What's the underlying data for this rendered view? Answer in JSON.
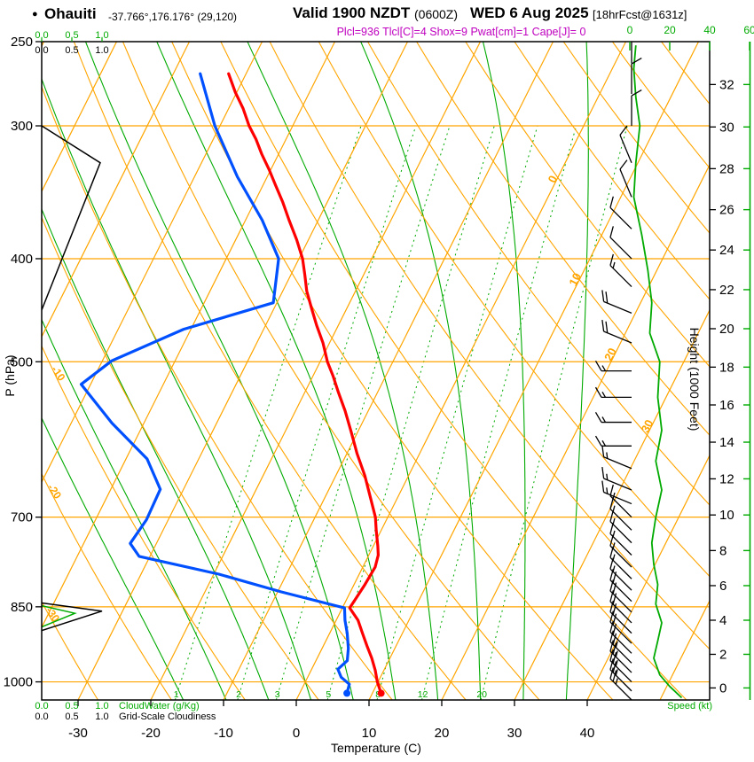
{
  "header": {
    "bullet": "●",
    "station": "Ohauiti",
    "coords": "-37.766°,176.176° (29,120)",
    "valid_prefix": "Valid 1900 NZDT",
    "valid_zulu": "(0600Z)",
    "valid_date": "WED 6 Aug 2025",
    "fcst_tag": "[18hrFcst@1631z]",
    "params": "Plcl=936 Tlcl[C]=4 Shox=9 Pwat[cm]=1 Cape[J]= 0"
  },
  "axes": {
    "pressure_label": "P (hPa)",
    "temperature_label": "Temperature (C)",
    "height_label": "Height (1000 Feet)",
    "speed_label": "Speed (kt)",
    "cloudwater_label": "CloudWater (g/Kg)",
    "cloudiness_label": "Grid-Scale Cloudiness",
    "pressure_ticks": [
      250,
      300,
      400,
      500,
      700,
      850,
      1000
    ],
    "temperature_ticks": [
      -30,
      -20,
      -10,
      0,
      10,
      20,
      30,
      40
    ],
    "height_ticks": [
      0,
      2,
      4,
      6,
      8,
      10,
      12,
      14,
      16,
      18,
      20,
      22,
      24,
      26,
      28,
      30,
      32
    ],
    "speed_scale_ticks": [
      "0",
      "20",
      "40",
      "60"
    ],
    "cloud_scale_ticks": [
      "0.0",
      "0.5",
      "1.0"
    ]
  },
  "chart_data": {
    "type": "line",
    "subtype": "skew-t log-p sounding",
    "pressure_range_hPa": [
      250,
      1040
    ],
    "isotherm_lines_C": {
      "start": -80,
      "end": 50,
      "step": 10
    },
    "isotherm_labels": [
      {
        "t": 0,
        "p": 338
      },
      {
        "t": 10,
        "p": 420
      },
      {
        "t": 20,
        "p": 494
      },
      {
        "t": 30,
        "p": 577
      }
    ],
    "dry_adiabat_lines_C": {
      "start": -90,
      "end": 150,
      "step": 10
    },
    "dry_adiabat_labels": [
      {
        "theta": -10,
        "p": 515
      },
      {
        "theta": -20,
        "p": 665
      },
      {
        "theta": -30,
        "p": 868
      }
    ],
    "moist_adiabat_lines_C": {
      "start": -18,
      "end": 36,
      "step": 6
    },
    "mixing_ratio_lines_gkg": [
      1,
      2,
      3,
      5,
      8,
      12,
      20
    ],
    "pressure_gridlines_hPa": [
      300,
      400,
      500,
      700,
      850,
      1000
    ],
    "temperature_profile": {
      "color": "#ff0000",
      "points_p_t": [
        [
          1025,
          11.2
        ],
        [
          1000,
          9.9
        ],
        [
          975,
          8.8
        ],
        [
          950,
          7.5
        ],
        [
          925,
          6.0
        ],
        [
          900,
          4.5
        ],
        [
          875,
          3.0
        ],
        [
          852,
          1.0
        ],
        [
          835,
          1.2
        ],
        [
          810,
          1.5
        ],
        [
          780,
          1.7
        ],
        [
          760,
          1.3
        ],
        [
          745,
          0.6
        ],
        [
          720,
          -0.7
        ],
        [
          700,
          -1.7
        ],
        [
          670,
          -3.8
        ],
        [
          640,
          -6.0
        ],
        [
          610,
          -8.6
        ],
        [
          582,
          -10.9
        ],
        [
          556,
          -13.2
        ],
        [
          534,
          -15.4
        ],
        [
          516,
          -17.2
        ],
        [
          500,
          -19.0
        ],
        [
          480,
          -20.9
        ],
        [
          462,
          -23.0
        ],
        [
          445,
          -24.9
        ],
        [
          429,
          -26.7
        ],
        [
          414,
          -28.1
        ],
        [
          400,
          -29.5
        ],
        [
          384,
          -31.6
        ],
        [
          368,
          -34.0
        ],
        [
          354,
          -36.1
        ],
        [
          341,
          -38.3
        ],
        [
          330,
          -40.2
        ],
        [
          319,
          -42.3
        ],
        [
          309,
          -44.1
        ],
        [
          300,
          -46.0
        ],
        [
          289,
          -48.0
        ],
        [
          279,
          -50.2
        ],
        [
          268,
          -52.4
        ]
      ]
    },
    "dewpoint_profile": {
      "color": "#0050ff",
      "points_p_t": [
        [
          1025,
          6.5
        ],
        [
          1005,
          6.2
        ],
        [
          990,
          4.6
        ],
        [
          973,
          3.6
        ],
        [
          955,
          4.3
        ],
        [
          930,
          3.6
        ],
        [
          900,
          2.4
        ],
        [
          875,
          1.2
        ],
        [
          852,
          0.3
        ],
        [
          823,
          -9.5
        ],
        [
          792,
          -19.3
        ],
        [
          762,
          -31.5
        ],
        [
          741,
          -33.6
        ],
        [
          704,
          -33.0
        ],
        [
          659,
          -33.2
        ],
        [
          617,
          -37.1
        ],
        [
          571,
          -44.4
        ],
        [
          525,
          -51.3
        ],
        [
          499,
          -48.7
        ],
        [
          466,
          -41.0
        ],
        [
          440,
          -30.5
        ],
        [
          400,
          -32.8
        ],
        [
          368,
          -37.7
        ],
        [
          335,
          -44.1
        ],
        [
          300,
          -50.7
        ],
        [
          268,
          -56.3
        ]
      ]
    },
    "wind_barbs": {
      "station_column": "right",
      "points_p_dir_kt": [
        [
          1040,
          "NW",
          25
        ],
        [
          1020,
          "NW",
          25
        ],
        [
          1000,
          "NW",
          25
        ],
        [
          980,
          "NW",
          25
        ],
        [
          960,
          "NW",
          25
        ],
        [
          940,
          "NW",
          22
        ],
        [
          920,
          "NW",
          22
        ],
        [
          900,
          "NW",
          20
        ],
        [
          880,
          "NW",
          20
        ],
        [
          860,
          "NW",
          20
        ],
        [
          840,
          "NW",
          18
        ],
        [
          820,
          "NW",
          15
        ],
        [
          800,
          "NW",
          15
        ],
        [
          780,
          "NW",
          15
        ],
        [
          760,
          "NW",
          15
        ],
        [
          740,
          "NW",
          15
        ],
        [
          720,
          "NW",
          15
        ],
        [
          700,
          "NW",
          15
        ],
        [
          680,
          "WNW",
          15
        ],
        [
          660,
          "WNW",
          15
        ],
        [
          630,
          "WNW",
          15
        ],
        [
          600,
          "W",
          15
        ],
        [
          570,
          "W",
          15
        ],
        [
          540,
          "W",
          15
        ],
        [
          510,
          "W",
          15
        ],
        [
          480,
          "WNW",
          18
        ],
        [
          450,
          "WNW",
          20
        ],
        [
          425,
          "NW",
          15
        ],
        [
          400,
          "NW",
          12
        ],
        [
          375,
          "NW",
          10
        ],
        [
          350,
          "NNW",
          8
        ],
        [
          325,
          "NNW",
          8
        ],
        [
          300,
          "N",
          10
        ],
        [
          280,
          "N",
          12
        ],
        [
          262,
          "N",
          15
        ]
      ]
    },
    "speed_profile_kt": {
      "points_p_kt": [
        [
          1035,
          26
        ],
        [
          1010,
          20
        ],
        [
          985,
          15
        ],
        [
          950,
          12
        ],
        [
          915,
          14
        ],
        [
          880,
          16
        ],
        [
          845,
          13
        ],
        [
          810,
          14
        ],
        [
          775,
          12
        ],
        [
          740,
          11
        ],
        [
          700,
          13
        ],
        [
          660,
          16
        ],
        [
          620,
          13
        ],
        [
          580,
          16
        ],
        [
          540,
          14
        ],
        [
          500,
          15
        ],
        [
          470,
          10
        ],
        [
          440,
          11
        ],
        [
          410,
          9
        ],
        [
          380,
          6
        ],
        [
          350,
          2
        ],
        [
          325,
          3
        ],
        [
          300,
          5
        ],
        [
          282,
          3
        ],
        [
          265,
          2
        ],
        [
          252,
          3
        ]
      ]
    },
    "cloudiness_profile": {
      "segments": [
        [
          [
            447,
            0
          ],
          [
            325,
            0.97
          ],
          [
            300,
            0
          ]
        ],
        [
          [
            895,
            0
          ],
          [
            858,
            1.0
          ],
          [
            843,
            0
          ]
        ]
      ]
    },
    "cloudwater_profile": {
      "segments": [
        [
          [
            888,
            0
          ],
          [
            862,
            0.55
          ],
          [
            848,
            0
          ]
        ]
      ]
    },
    "colors": {
      "grid_orange": "#ffa500",
      "green": "#00aa00",
      "temp_red": "#ff0000",
      "dew_blue": "#0050ff",
      "params_magenta": "#bf00bf",
      "black": "#000000"
    }
  }
}
